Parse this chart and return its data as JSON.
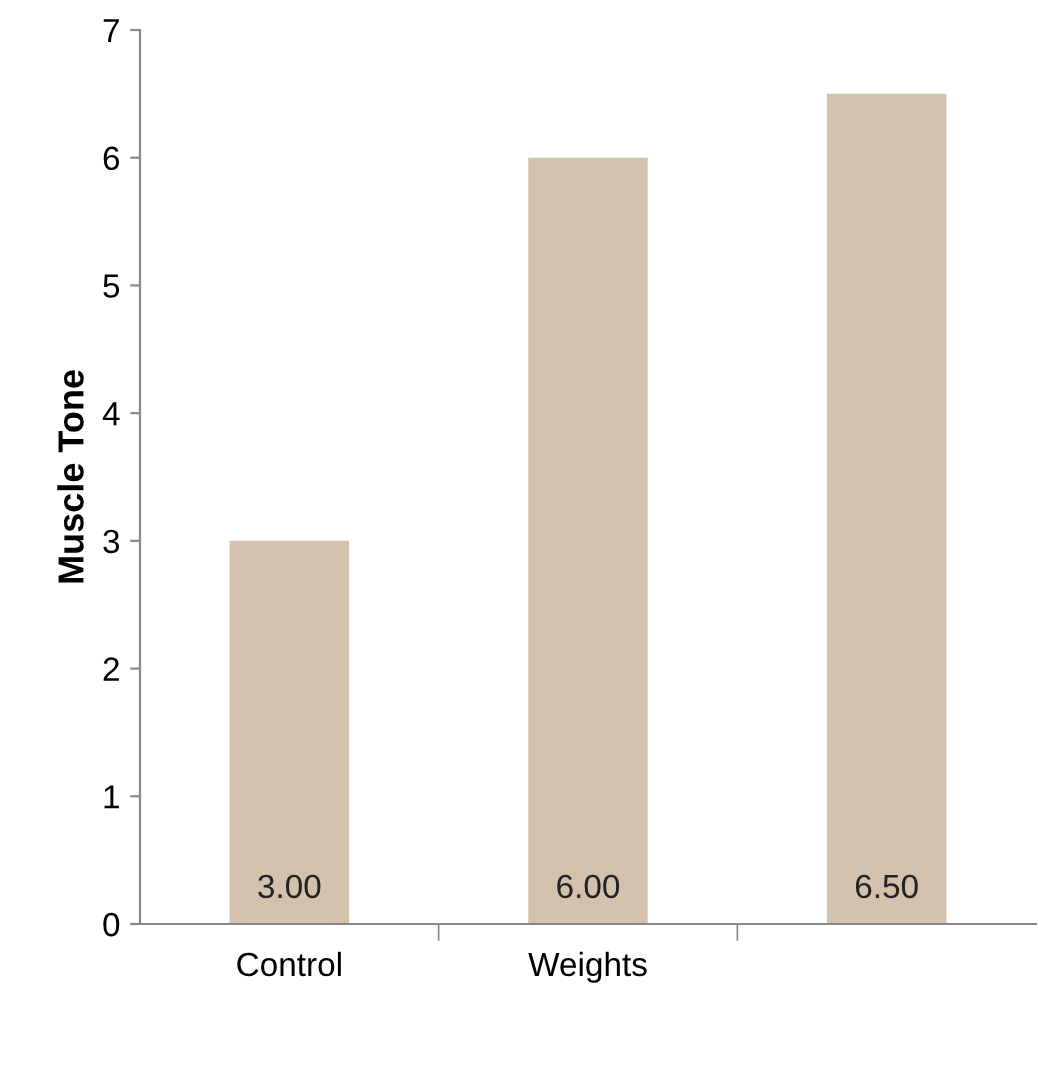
{
  "chart_data": {
    "type": "bar",
    "ylabel": "Muscle Tone",
    "categories": [
      "Control",
      "Weights",
      null
    ],
    "values": [
      3,
      6,
      6.5
    ],
    "color": "#d3c1ad",
    "value_labels": [
      "3.00",
      "6.00",
      "6.50"
    ],
    "ylim": [
      0,
      7
    ],
    "yticks": [
      0,
      1,
      2,
      3,
      4,
      5,
      6,
      7
    ],
    "grid": false
  }
}
